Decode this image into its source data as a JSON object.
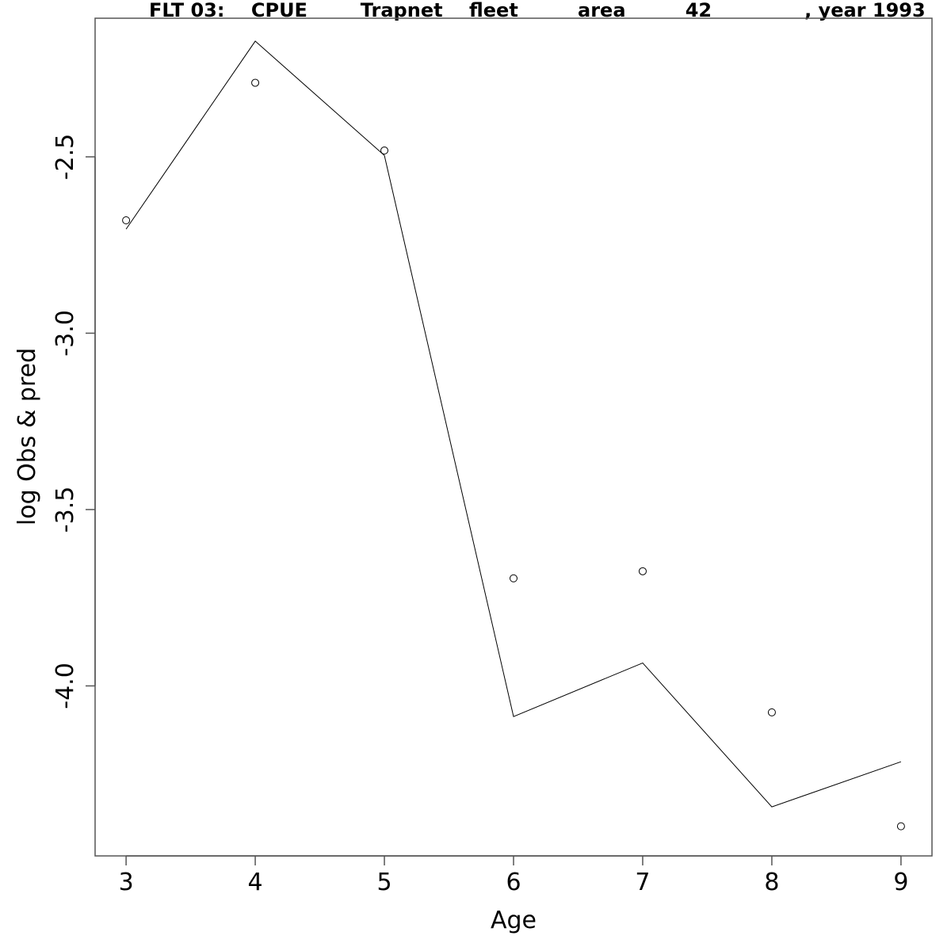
{
  "chart_data": {
    "type": "line",
    "title": "FLT 03:    CPUE        Trapnet    fleet         area         42              , year 1993",
    "xlabel": "Age",
    "ylabel": "log Obs & pred",
    "x": [
      3,
      4,
      5,
      6,
      7,
      8,
      9
    ],
    "x_ticks": [
      "3",
      "4",
      "5",
      "6",
      "7",
      "8",
      "9"
    ],
    "y_ticks": [
      "-2.5",
      "-3.0",
      "-3.5",
      "-4.0"
    ],
    "y_tick_values": [
      -2.5,
      -3.0,
      -3.5,
      -4.0
    ],
    "xlim": [
      2.76,
      9.24
    ],
    "ylim": [
      -4.482,
      -2.107
    ],
    "grid": false,
    "series": [
      {
        "style": "line",
        "values": [
          -2.705,
          -2.172,
          -2.496,
          -4.087,
          -3.935,
          -4.343,
          -4.215
        ]
      },
      {
        "style": "points",
        "marker": "open-circle",
        "values": [
          -2.68,
          -2.29,
          -2.482,
          -3.695,
          -3.675,
          -4.075,
          -4.398
        ]
      }
    ]
  }
}
